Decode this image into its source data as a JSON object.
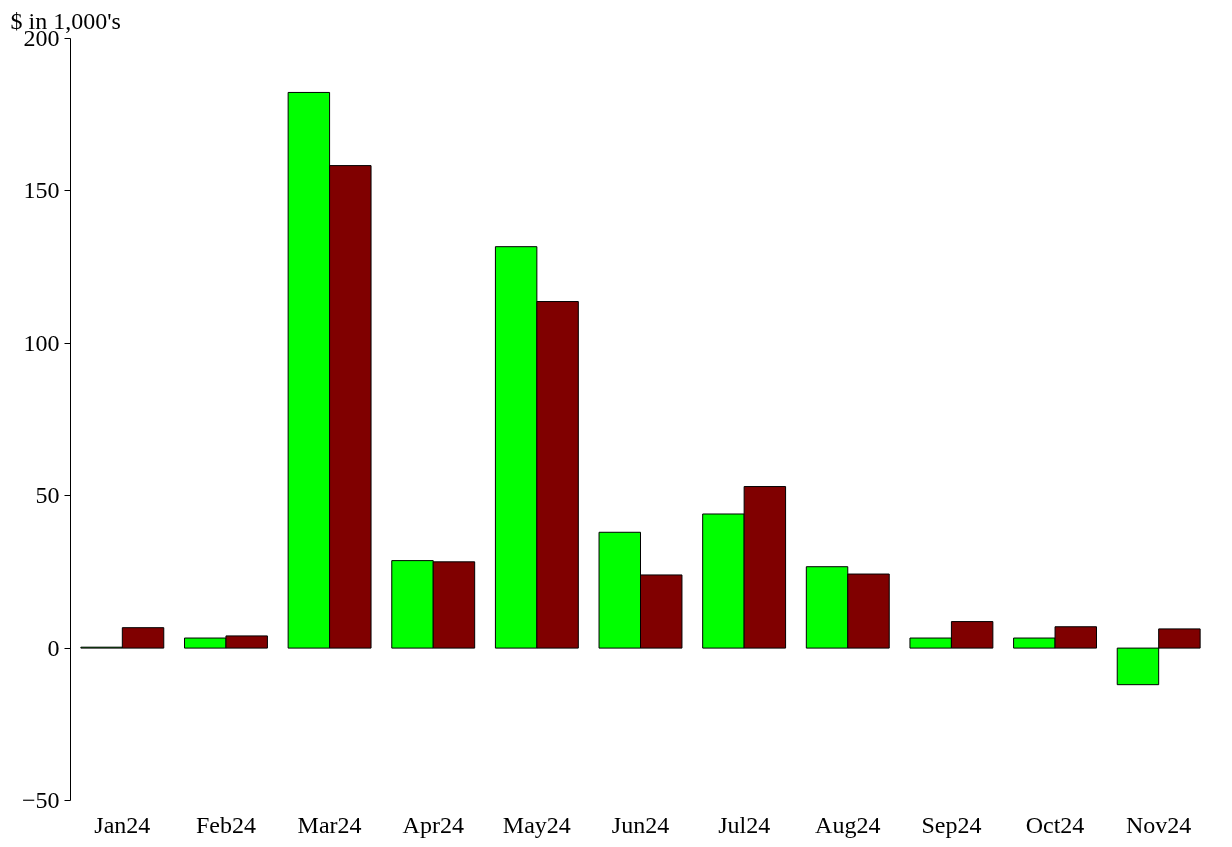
{
  "chart_data": {
    "type": "bar",
    "ylabel": "$ in 1,000's",
    "categories": [
      "Jan24",
      "Feb24",
      "Mar24",
      "Apr24",
      "May24",
      "Jun24",
      "Jul24",
      "Aug24",
      "Sep24",
      "Oct24",
      "Nov24"
    ],
    "series": [
      {
        "color": "#00ff00",
        "values": [
          0.3,
          3.3,
          182.3,
          28.7,
          131.7,
          38,
          44,
          26.7,
          3.3,
          3.3,
          -12
        ]
      },
      {
        "color": "#800000",
        "values": [
          6.7,
          4,
          158.3,
          28.3,
          113.7,
          24,
          53,
          24.3,
          8.7,
          7,
          6.3
        ]
      }
    ],
    "ylim": [
      -50,
      200
    ],
    "yticks": [
      -50,
      0,
      50,
      100,
      150,
      200
    ],
    "grid": false
  }
}
